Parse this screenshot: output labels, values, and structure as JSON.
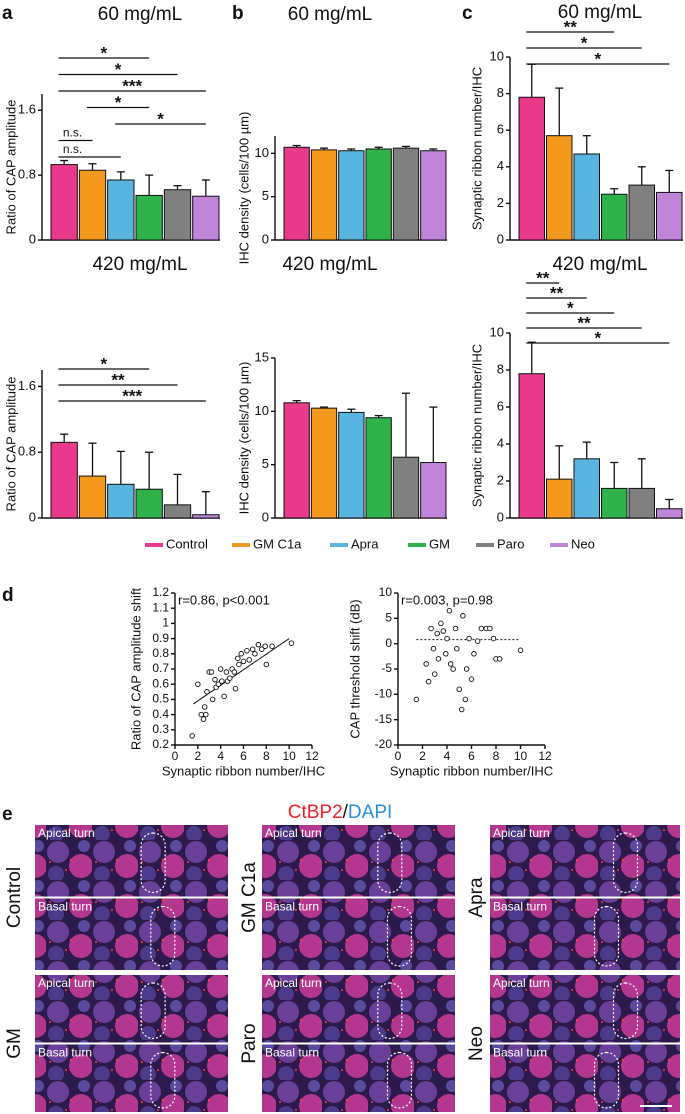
{
  "panel_labels": [
    "a",
    "b",
    "c",
    "d",
    "e"
  ],
  "legend": {
    "categories": [
      "Control",
      "GM C1a",
      "Apra",
      "GM",
      "Paro",
      "Neo"
    ],
    "colors": [
      "#e8398a",
      "#f39a1e",
      "#5ab4e0",
      "#2fb24a",
      "#808080",
      "#c084d8"
    ]
  },
  "chart_data": [
    {
      "type": "bar",
      "title": "60 mg/mL",
      "ylabel": "Ratio of CAP amplitude",
      "values": [
        0.93,
        0.86,
        0.74,
        0.55,
        0.62,
        0.54
      ],
      "errors": [
        0.05,
        0.08,
        0.1,
        0.25,
        0.05,
        0.2
      ],
      "ylim": [
        0,
        1.8
      ],
      "yticks": [
        0,
        0.8,
        1.6
      ],
      "significance": [
        {
          "from": 0,
          "to": 3,
          "label": "*"
        },
        {
          "from": 0,
          "to": 4,
          "label": "*"
        },
        {
          "from": 0,
          "to": 5,
          "label": "***"
        },
        {
          "from": 1,
          "to": 3,
          "label": "*"
        },
        {
          "from": 2,
          "to": 5,
          "label": "*"
        },
        {
          "from": 0,
          "to": 1,
          "label": "n.s."
        },
        {
          "from": 0,
          "to": 2,
          "label": "n.s."
        }
      ]
    },
    {
      "type": "bar",
      "title": "420 mg/mL",
      "ylabel": "Ratio of CAP amplitude",
      "values": [
        0.92,
        0.51,
        0.41,
        0.35,
        0.16,
        0.04
      ],
      "errors": [
        0.1,
        0.4,
        0.4,
        0.45,
        0.37,
        0.28
      ],
      "ylim": [
        0,
        1.8
      ],
      "yticks": [
        0,
        0.8,
        1.6
      ],
      "significance": [
        {
          "from": 0,
          "to": 3,
          "label": "*"
        },
        {
          "from": 0,
          "to": 4,
          "label": "**"
        },
        {
          "from": 0,
          "to": 5,
          "label": "***"
        }
      ]
    },
    {
      "type": "bar",
      "title": "60 mg/mL",
      "ylabel": "IHC density (cells/100 µm)",
      "values": [
        10.7,
        10.4,
        10.3,
        10.5,
        10.6,
        10.3
      ],
      "errors": [
        0.2,
        0.2,
        0.2,
        0.2,
        0.2,
        0.2
      ],
      "ylim": [
        0,
        12
      ],
      "yticks": [
        0,
        5,
        10
      ],
      "significance": []
    },
    {
      "type": "bar",
      "title": "420 mg/mL",
      "ylabel": "IHC density (cells/100 µm)",
      "values": [
        10.8,
        10.3,
        9.9,
        9.4,
        5.7,
        5.2
      ],
      "errors": [
        0.2,
        0.1,
        0.3,
        0.2,
        6.0,
        5.2
      ],
      "ylim": [
        0,
        15
      ],
      "yticks": [
        0,
        5,
        10,
        15
      ],
      "significance": []
    },
    {
      "type": "bar",
      "title": "60 mg/mL",
      "ylabel": "Synaptic ribbon number/IHC",
      "values": [
        7.8,
        5.7,
        4.7,
        2.5,
        3.0,
        2.6
      ],
      "errors": [
        1.8,
        2.6,
        1.0,
        0.3,
        1.0,
        1.2
      ],
      "ylim": [
        0,
        10
      ],
      "yticks": [
        0,
        2,
        4,
        6,
        8,
        10
      ],
      "significance": [
        {
          "from": 0,
          "to": 3,
          "label": "**"
        },
        {
          "from": 0,
          "to": 4,
          "label": "*"
        },
        {
          "from": 0,
          "to": 5,
          "label": "*"
        }
      ]
    },
    {
      "type": "bar",
      "title": "420 mg/mL",
      "ylabel": "Synaptic ribbon number/IHC",
      "values": [
        7.8,
        2.1,
        3.2,
        1.6,
        1.6,
        0.5
      ],
      "errors": [
        1.7,
        1.8,
        0.9,
        1.4,
        1.6,
        0.5
      ],
      "ylim": [
        0,
        10
      ],
      "yticks": [
        0,
        2,
        4,
        6,
        8,
        10
      ],
      "significance": [
        {
          "from": 0,
          "to": 1,
          "label": "**"
        },
        {
          "from": 0,
          "to": 2,
          "label": "**"
        },
        {
          "from": 0,
          "to": 3,
          "label": "*"
        },
        {
          "from": 0,
          "to": 4,
          "label": "**"
        },
        {
          "from": 0,
          "to": 5,
          "label": "*"
        }
      ]
    },
    {
      "type": "scatter",
      "annotation": "r=0.86, p<0.001",
      "xlabel": "Synaptic ribbon number/IHC",
      "ylabel": "Ratio of CAP amplitude shift",
      "x": [
        1.5,
        2,
        2.3,
        2.5,
        2.6,
        2.7,
        2.8,
        3,
        3.2,
        3.3,
        3.5,
        3.6,
        3.8,
        4,
        4.1,
        4.3,
        4.5,
        4.6,
        4.8,
        5,
        5.2,
        5.3,
        5.5,
        5.6,
        5.8,
        6,
        6.3,
        6.5,
        6.8,
        7,
        7.3,
        7.6,
        7.9,
        8,
        8.5,
        10.2
      ],
      "values": [
        0.26,
        0.6,
        0.4,
        0.37,
        0.45,
        0.4,
        0.55,
        0.68,
        0.68,
        0.5,
        0.63,
        0.58,
        0.6,
        0.7,
        0.62,
        0.52,
        0.68,
        0.62,
        0.64,
        0.7,
        0.68,
        0.57,
        0.77,
        0.73,
        0.8,
        0.75,
        0.82,
        0.76,
        0.83,
        0.8,
        0.86,
        0.83,
        0.85,
        0.73,
        0.85,
        0.87
      ],
      "fit": {
        "x": [
          1.6,
          10
        ],
        "y": [
          0.47,
          0.9
        ],
        "dashed": false
      },
      "xlim": [
        0,
        12
      ],
      "xticks": [
        0,
        2,
        4,
        6,
        8,
        10,
        12
      ],
      "ylim": [
        0.2,
        1.2
      ],
      "yticks": [
        0.2,
        0.3,
        0.4,
        0.5,
        0.6,
        0.7,
        0.8,
        0.9,
        1,
        1.1,
        1.2
      ]
    },
    {
      "type": "scatter",
      "annotation": "r=0.003, p=0.98",
      "xlabel": "Synaptic ribbon number/IHC",
      "ylabel": "CAP threshold shift (dB)",
      "x": [
        1.5,
        2.3,
        2.5,
        2.7,
        2.9,
        3,
        3.2,
        3.3,
        3.5,
        3.7,
        3.9,
        4,
        4.2,
        4.3,
        4.5,
        4.7,
        4.8,
        5,
        5.2,
        5.3,
        5.5,
        5.6,
        5.8,
        6,
        6.2,
        6.5,
        6.8,
        7.2,
        7.5,
        7.8,
        8,
        8.3,
        10
      ],
      "values": [
        -11,
        -4,
        -7.5,
        3,
        -1,
        -6,
        2,
        -3,
        4,
        2.5,
        -2,
        1,
        6.5,
        -4,
        -5,
        3,
        -1,
        -9,
        -13,
        5.5,
        -11,
        -5,
        1,
        -7,
        -2,
        0.5,
        3,
        3,
        3,
        1,
        -3,
        -3,
        -1.3
      ],
      "fit": {
        "x": [
          1.5,
          10
        ],
        "y": [
          0.8,
          0.8
        ],
        "dashed": true
      },
      "xlim": [
        0,
        12
      ],
      "xticks": [
        0,
        2,
        4,
        6,
        8,
        10,
        12
      ],
      "ylim": [
        -20,
        10
      ],
      "yticks": [
        -20,
        -15,
        -10,
        -5,
        0,
        5,
        10
      ]
    }
  ],
  "micrographs": {
    "title": [
      "CtBP2",
      "/",
      "DAPI"
    ],
    "title_colors": [
      "#e8232a",
      "#111111",
      "#2a8fd6"
    ],
    "groups": [
      {
        "label": "Control",
        "turns": [
          "Apical turn",
          "Basal turn"
        ]
      },
      {
        "label": "GM C1a",
        "turns": [
          "Apical turn",
          "Basal turn"
        ]
      },
      {
        "label": "Apra",
        "turns": [
          "Apical turn",
          "Basal turn"
        ]
      },
      {
        "label": "GM",
        "turns": [
          "Apical turn",
          "Basal turn"
        ]
      },
      {
        "label": "Paro",
        "turns": [
          "Apical turn",
          "Basal turn"
        ]
      },
      {
        "label": "Neo",
        "turns": [
          "Apical turn",
          "Basal turn"
        ]
      }
    ]
  }
}
